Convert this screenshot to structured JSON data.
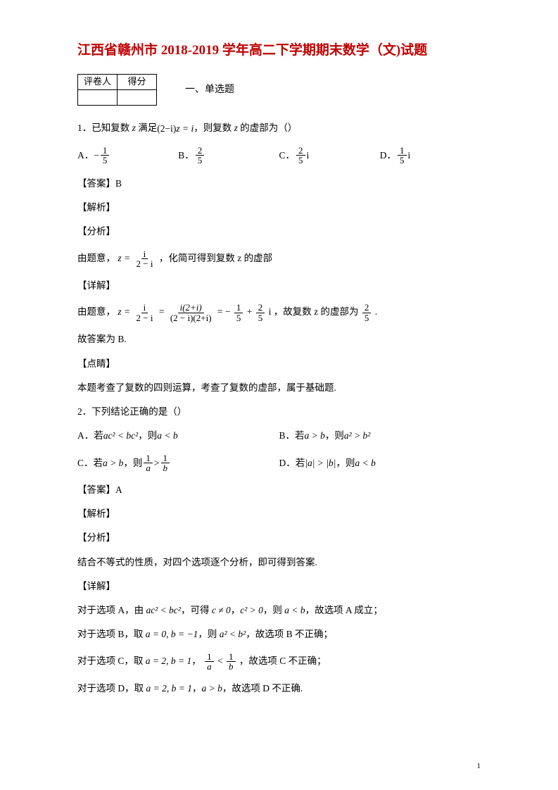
{
  "title": "江西省赣州市 2018-2019 学年高二下学期期末数学（文)试题",
  "grade_table": {
    "h1": "评卷人",
    "h2": "得分"
  },
  "section": "一、单选题",
  "q1": {
    "stem_pre": "1．已知复数 ",
    "var": "z",
    "stem_mid": " 满足",
    "eq_l": "(2−i)",
    "eq_r": "z = i",
    "stem_post": "，则复数 ",
    "stem_end": " 的虚部为（）",
    "opts": {
      "A": {
        "label": "A．",
        "sign": "−",
        "num": "1",
        "den": "5",
        "suffix": ""
      },
      "B": {
        "label": "B．",
        "sign": "",
        "num": "2",
        "den": "5",
        "suffix": ""
      },
      "C": {
        "label": "C．",
        "sign": "",
        "num": "2",
        "den": "5",
        "suffix": "i"
      },
      "D": {
        "label": "D．",
        "sign": "",
        "num": "1",
        "den": "5",
        "suffix": "i"
      }
    },
    "answer_label": "【答案】B",
    "jiexi": "【解析】",
    "fenxi": "【分析】",
    "fenxi_text_pre": "由题意，",
    "fenxi_eq_lhs": "z =",
    "fenxi_frac_num": "i",
    "fenxi_frac_den": "2 − i",
    "fenxi_text_post": "，化简可得到复数 z 的虚部",
    "xiangjie": "【详解】",
    "xj_pre": "由题意，",
    "xj_lhs": "z =",
    "xj_f1_num": "i",
    "xj_f1_den": "2 − i",
    "xj_eq1": "=",
    "xj_f2_num": "i(2+i)",
    "xj_f2_den": "(2 − i)(2+i)",
    "xj_eq2": "= −",
    "xj_f3_num": "1",
    "xj_f3_den": "5",
    "xj_plus": "+",
    "xj_f4_num": "2",
    "xj_f4_den": "5",
    "xj_i": "i",
    "xj_mid": "，故复数 z 的虚部为",
    "xj_f5_num": "2",
    "xj_f5_den": "5",
    "xj_end": ".",
    "conc": "故答案为 B.",
    "dianjing": "【点睛】",
    "dianjing_text": "本题考查了复数的四则运算，考查了复数的虚部，属于基础题."
  },
  "q2": {
    "stem": "2．下列结论正确的是（）",
    "A_pre": "A．若 ",
    "A_ineq": "ac² < bc²",
    "A_mid": "，则 ",
    "A_res": "a < b",
    "B_pre": "B．若 ",
    "B_ineq": "a > b",
    "B_mid": "，则 ",
    "B_res": "a² > b²",
    "C_pre": "C．若 ",
    "C_ineq": "a > b",
    "C_mid": "，则 ",
    "C_f1_num": "1",
    "C_f1_den": "a",
    "C_gt": ">",
    "C_f2_num": "1",
    "C_f2_den": "b",
    "D_pre": "D．若 ",
    "D_ineq": "|a| > |b|",
    "D_mid": "，则 ",
    "D_res": "a < b",
    "answer_label": "【答案】A",
    "jiexi": "【解析】",
    "fenxi": "【分析】",
    "fenxi_text": "结合不等式的性质，对四个选项逐个分析，即可得到答案.",
    "xiangjie": "【详解】",
    "xj_A_pre": "对于选项 A，由 ",
    "xj_A_1": "ac² < bc²",
    "xj_A_2": "，可得 ",
    "xj_A_3": "c ≠ 0",
    "xj_A_4": "，",
    "xj_A_5": "c² > 0",
    "xj_A_6": "，则 ",
    "xj_A_7": "a < b",
    "xj_A_8": "，故选项 A 成立；",
    "xj_B_pre": "对于选项 B，取 ",
    "xj_B_1": "a = 0, b = −1",
    "xj_B_2": "，则 ",
    "xj_B_3": "a² < b²",
    "xj_B_4": "，故选项 B 不正确；",
    "xj_C_pre": "对于选项 C，取 ",
    "xj_C_1": "a = 2, b = 1",
    "xj_C_2": "，",
    "xj_C_f1_num": "1",
    "xj_C_f1_den": "a",
    "xj_C_lt": "<",
    "xj_C_f2_num": "1",
    "xj_C_f2_den": "b",
    "xj_C_3": "，故选项 C 不正确；",
    "xj_D_pre": "对于选项 D，取 ",
    "xj_D_1": "a = 2, b = 1",
    "xj_D_2": "，",
    "xj_D_3": "a > b",
    "xj_D_4": "，故选项 D 不正确."
  },
  "page_number": "1",
  "colors": {
    "title": "#c00000",
    "text": "#000000",
    "bg": "#ffffff"
  }
}
